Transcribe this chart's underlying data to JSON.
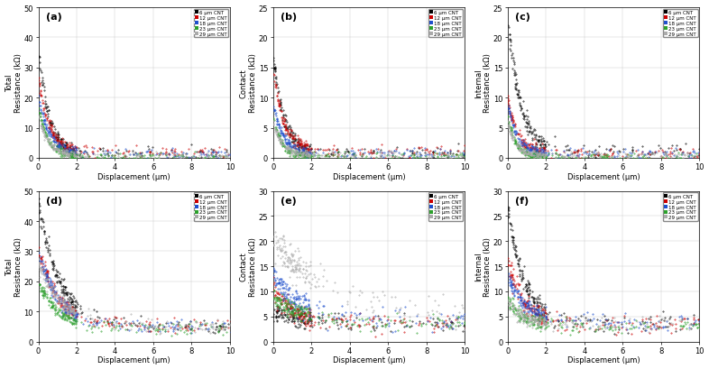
{
  "legend_labels_top": [
    "6 μm CNT",
    "12 μm CNT",
    "18 μm CNT",
    "23 μm CNT",
    "29 μm CNT"
  ],
  "legend_labels_bot": [
    "6 μm CNT",
    "12 μm CNT",
    "18 μm CNT",
    "23 μm CNT",
    "29 μm CNT"
  ],
  "colors": [
    "#000000",
    "#cc0000",
    "#1f4fcc",
    "#2ca02c",
    "#aaaaaa"
  ],
  "subplots": [
    {
      "label": "(a)",
      "ylabel_line1": "Total",
      "ylabel_line2": "Resistance (kΩ)",
      "xlabel": "Displacement (μm)",
      "ylim": [
        0,
        50
      ],
      "xlim": [
        0,
        10
      ],
      "yticks": [
        0,
        10,
        20,
        30,
        40,
        50
      ],
      "xticks": [
        0,
        2,
        4,
        6,
        8,
        10
      ],
      "series": [
        {
          "y0": 35,
          "yf": 1.2,
          "decay": 1.8,
          "noise": 1.2
        },
        {
          "y0": 26,
          "yf": 2.0,
          "decay": 1.8,
          "noise": 1.0
        },
        {
          "y0": 20,
          "yf": 1.5,
          "decay": 1.8,
          "noise": 0.8
        },
        {
          "y0": 17,
          "yf": 0.5,
          "decay": 2.2,
          "noise": 0.6
        },
        {
          "y0": 14,
          "yf": 0.8,
          "decay": 2.0,
          "noise": 0.5
        }
      ]
    },
    {
      "label": "(b)",
      "ylabel_line1": "Contact",
      "ylabel_line2": "Resistance (kΩ)",
      "xlabel": "Displacement (μm)",
      "ylim": [
        0,
        25
      ],
      "xlim": [
        0,
        10
      ],
      "yticks": [
        0,
        5,
        10,
        15,
        20,
        25
      ],
      "xticks": [
        0,
        2,
        4,
        6,
        8,
        10
      ],
      "series": [
        {
          "y0": 17,
          "yf": 0.8,
          "decay": 1.8,
          "noise": 0.6
        },
        {
          "y0": 15,
          "yf": 1.0,
          "decay": 1.8,
          "noise": 0.5
        },
        {
          "y0": 9,
          "yf": 0.7,
          "decay": 2.0,
          "noise": 0.4
        },
        {
          "y0": 7,
          "yf": 0.3,
          "decay": 2.5,
          "noise": 0.3
        },
        {
          "y0": 6,
          "yf": 0.5,
          "decay": 2.2,
          "noise": 0.3
        }
      ]
    },
    {
      "label": "(c)",
      "ylabel_line1": "Internal",
      "ylabel_line2": "Resistance (kΩ)",
      "xlabel": "Displacement (μm)",
      "ylim": [
        0,
        25
      ],
      "xlim": [
        0,
        10
      ],
      "yticks": [
        0,
        5,
        10,
        15,
        20,
        25
      ],
      "xticks": [
        0,
        2,
        4,
        6,
        8,
        10
      ],
      "series": [
        {
          "y0": 23,
          "yf": 1.0,
          "decay": 1.5,
          "noise": 0.8
        },
        {
          "y0": 10,
          "yf": 0.8,
          "decay": 2.0,
          "noise": 0.5
        },
        {
          "y0": 9,
          "yf": 0.7,
          "decay": 2.0,
          "noise": 0.4
        },
        {
          "y0": 7,
          "yf": 0.2,
          "decay": 2.5,
          "noise": 0.3
        },
        {
          "y0": 6,
          "yf": 0.4,
          "decay": 2.5,
          "noise": 0.3
        }
      ]
    },
    {
      "label": "(d)",
      "ylabel_line1": "Total",
      "ylabel_line2": "Resistance (kΩ)",
      "xlabel": "Displacement (μm)",
      "ylim": [
        0,
        50
      ],
      "xlim": [
        0,
        10
      ],
      "yticks": [
        0,
        10,
        20,
        30,
        40,
        50
      ],
      "xticks": [
        0,
        2,
        4,
        6,
        8,
        10
      ],
      "series": [
        {
          "y0": 46,
          "yf": 5.0,
          "decay": 0.9,
          "noise": 1.5
        },
        {
          "y0": 31,
          "yf": 5.5,
          "decay": 1.0,
          "noise": 1.2
        },
        {
          "y0": 30,
          "yf": 5.0,
          "decay": 1.0,
          "noise": 1.2
        },
        {
          "y0": 20,
          "yf": 4.5,
          "decay": 1.0,
          "noise": 1.0
        },
        {
          "y0": 26,
          "yf": 5.0,
          "decay": 0.8,
          "noise": 1.2
        }
      ]
    },
    {
      "label": "(e)",
      "ylabel_line1": "Contact",
      "ylabel_line2": "Resistance (kΩ)",
      "xlabel": "Displacement (μm)",
      "ylim": [
        0,
        30
      ],
      "xlim": [
        0,
        10
      ],
      "yticks": [
        0,
        5,
        10,
        15,
        20,
        25,
        30
      ],
      "xticks": [
        0,
        2,
        4,
        6,
        8,
        10
      ],
      "series": [
        {
          "y0": 6,
          "yf": 3.5,
          "decay": 0.5,
          "noise": 0.8
        },
        {
          "y0": 10,
          "yf": 3.5,
          "decay": 0.8,
          "noise": 1.0
        },
        {
          "y0": 13,
          "yf": 4.0,
          "decay": 0.6,
          "noise": 1.2
        },
        {
          "y0": 9,
          "yf": 3.8,
          "decay": 0.7,
          "noise": 0.8
        },
        {
          "y0": 20,
          "yf": 5.0,
          "decay": 0.3,
          "noise": 1.5
        }
      ]
    },
    {
      "label": "(f)",
      "ylabel_line1": "Internal",
      "ylabel_line2": "Resistance (kΩ)",
      "xlabel": "Displacement (μm)",
      "ylim": [
        0,
        30
      ],
      "xlim": [
        0,
        10
      ],
      "yticks": [
        0,
        5,
        10,
        15,
        20,
        25,
        30
      ],
      "xticks": [
        0,
        2,
        4,
        6,
        8,
        10
      ],
      "series": [
        {
          "y0": 27,
          "yf": 3.5,
          "decay": 1.2,
          "noise": 1.2
        },
        {
          "y0": 16,
          "yf": 3.5,
          "decay": 1.2,
          "noise": 1.0
        },
        {
          "y0": 13,
          "yf": 3.8,
          "decay": 1.0,
          "noise": 0.8
        },
        {
          "y0": 9,
          "yf": 3.2,
          "decay": 1.5,
          "noise": 0.7
        },
        {
          "y0": 8,
          "yf": 3.5,
          "decay": 1.5,
          "noise": 0.7
        }
      ]
    }
  ]
}
